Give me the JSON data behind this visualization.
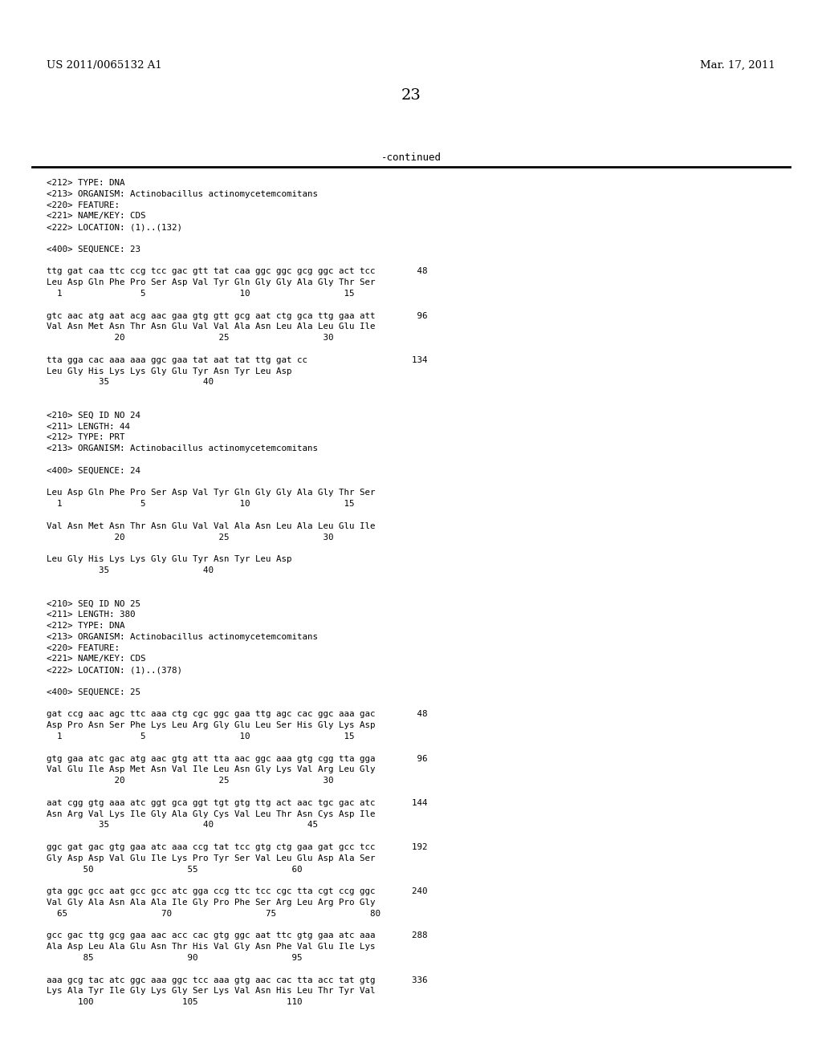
{
  "header_left": "US 2011/0065132 A1",
  "header_right": "Mar. 17, 2011",
  "page_number": "23",
  "continued_label": "-continued",
  "background_color": "#ffffff",
  "text_color": "#000000",
  "lines": [
    "<212> TYPE: DNA",
    "<213> ORGANISM: Actinobacillus actinomycetemcomitans",
    "<220> FEATURE:",
    "<221> NAME/KEY: CDS",
    "<222> LOCATION: (1)..(132)",
    "",
    "<400> SEQUENCE: 23",
    "",
    "ttg gat caa ttc ccg tcc gac gtt tat caa ggc ggc gcg ggc act tcc        48",
    "Leu Asp Gln Phe Pro Ser Asp Val Tyr Gln Gly Gly Ala Gly Thr Ser",
    "  1               5                  10                  15",
    "",
    "gtc aac atg aat acg aac gaa gtg gtt gcg aat ctg gca ttg gaa att        96",
    "Val Asn Met Asn Thr Asn Glu Val Val Ala Asn Leu Ala Leu Glu Ile",
    "             20                  25                  30",
    "",
    "tta gga cac aaa aaa ggc gaa tat aat tat ttg gat cc                    134",
    "Leu Gly His Lys Lys Gly Glu Tyr Asn Tyr Leu Asp",
    "          35                  40",
    "",
    "",
    "<210> SEQ ID NO 24",
    "<211> LENGTH: 44",
    "<212> TYPE: PRT",
    "<213> ORGANISM: Actinobacillus actinomycetemcomitans",
    "",
    "<400> SEQUENCE: 24",
    "",
    "Leu Asp Gln Phe Pro Ser Asp Val Tyr Gln Gly Gly Ala Gly Thr Ser",
    "  1               5                  10                  15",
    "",
    "Val Asn Met Asn Thr Asn Glu Val Val Ala Asn Leu Ala Leu Glu Ile",
    "             20                  25                  30",
    "",
    "Leu Gly His Lys Lys Gly Glu Tyr Asn Tyr Leu Asp",
    "          35                  40",
    "",
    "",
    "<210> SEQ ID NO 25",
    "<211> LENGTH: 380",
    "<212> TYPE: DNA",
    "<213> ORGANISM: Actinobacillus actinomycetemcomitans",
    "<220> FEATURE:",
    "<221> NAME/KEY: CDS",
    "<222> LOCATION: (1)..(378)",
    "",
    "<400> SEQUENCE: 25",
    "",
    "gat ccg aac agc ttc aaa ctg cgc ggc gaa ttg agc cac ggc aaa gac        48",
    "Asp Pro Asn Ser Phe Lys Leu Arg Gly Glu Leu Ser His Gly Lys Asp",
    "  1               5                  10                  15",
    "",
    "gtg gaa atc gac atg aac gtg att tta aac ggc aaa gtg cgg tta gga        96",
    "Val Glu Ile Asp Met Asn Val Ile Leu Asn Gly Lys Val Arg Leu Gly",
    "             20                  25                  30",
    "",
    "aat cgg gtg aaa atc ggt gca ggt tgt gtg ttg act aac tgc gac atc       144",
    "Asn Arg Val Lys Ile Gly Ala Gly Cys Val Leu Thr Asn Cys Asp Ile",
    "          35                  40                  45",
    "",
    "ggc gat gac gtg gaa atc aaa ccg tat tcc gtg ctg gaa gat gcc tcc       192",
    "Gly Asp Asp Val Glu Ile Lys Pro Tyr Ser Val Leu Glu Asp Ala Ser",
    "       50                  55                  60",
    "",
    "gta ggc gcc aat gcc gcc atc gga ccg ttc tcc cgc tta cgt ccg ggc       240",
    "Val Gly Ala Asn Ala Ala Ile Gly Pro Phe Ser Arg Leu Arg Pro Gly",
    "  65                  70                  75                  80",
    "",
    "gcc gac ttg gcg gaa aac acc cac gtg ggc aat ttc gtg gaa atc aaa       288",
    "Ala Asp Leu Ala Glu Asn Thr His Val Gly Asn Phe Val Glu Ile Lys",
    "       85                  90                  95",
    "",
    "aaa gcg tac atc ggc aaa ggc tcc aaa gtg aac cac tta acc tat gtg       336",
    "Lys Ala Tyr Ile Gly Lys Gly Ser Lys Val Asn His Leu Thr Tyr Val",
    "      100                 105                 110"
  ]
}
